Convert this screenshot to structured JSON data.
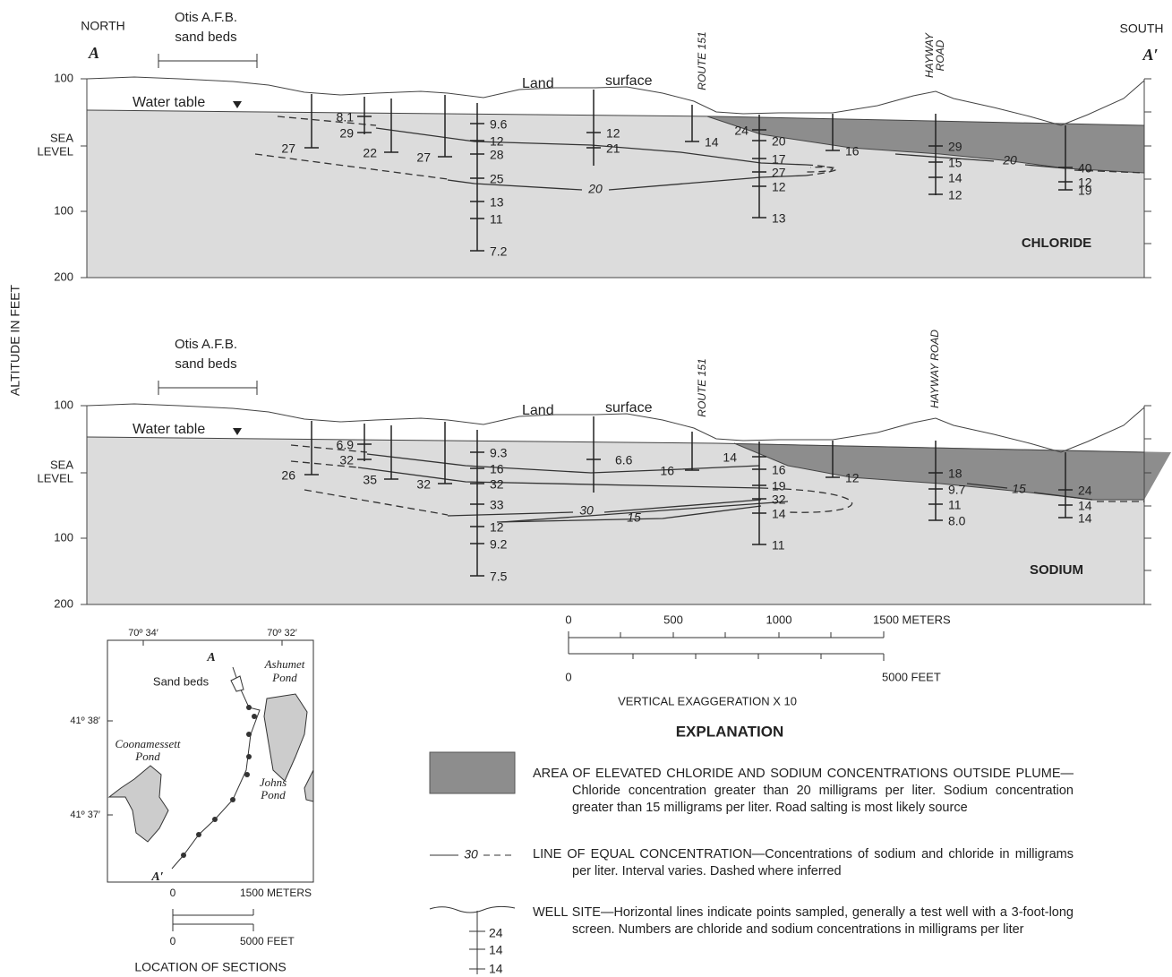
{
  "y_axis_title": "ALTITUDE IN FEET",
  "chloride_section": {
    "north": "NORTH",
    "south": "SOUTH",
    "a": "A",
    "a_prime": "A′",
    "sand_beds": [
      "Otis A.F.B.",
      "sand beds"
    ],
    "y_labels": [
      "100",
      "SEA",
      "LEVEL",
      "100",
      "200"
    ],
    "water_table": "Water table",
    "land": "Land",
    "surface": "surface",
    "route": "ROUTE 151",
    "hayway": [
      "HAYWAY",
      "ROAD"
    ],
    "name": "CHLORIDE",
    "wells": [
      [
        27
      ],
      [
        8.1,
        29
      ],
      [
        22
      ],
      [
        27
      ],
      [
        9.6,
        12,
        28,
        25,
        13,
        11,
        7.2
      ],
      [
        12,
        21
      ],
      [
        14
      ],
      [
        24,
        20,
        17,
        27,
        12,
        13
      ],
      [
        16
      ],
      [
        29,
        15,
        14,
        12
      ],
      [
        40,
        12,
        19
      ]
    ],
    "contour_labels": [
      20,
      20
    ]
  },
  "sodium_section": {
    "sand_beds": [
      "Otis A.F.B.",
      "sand beds"
    ],
    "y_labels": [
      "100",
      "SEA",
      "LEVEL",
      "100",
      "200"
    ],
    "water_table": "Water table",
    "land": "Land",
    "surface": "surface",
    "route": "ROUTE 151",
    "hayway": [
      "HAYWAY ROAD"
    ],
    "name": "SODIUM",
    "wells": [
      [
        26
      ],
      [
        6.9,
        32
      ],
      [
        35
      ],
      [
        32
      ],
      [
        9.3,
        16,
        32,
        33,
        12,
        9.2,
        7.5
      ],
      [
        6.6
      ],
      [
        16
      ],
      [
        14,
        16,
        19,
        32,
        14,
        11
      ],
      [
        12
      ],
      [
        18,
        9.7,
        11,
        "8.0"
      ],
      [
        24,
        14,
        14
      ]
    ],
    "contour_labels": [
      30,
      15,
      15
    ]
  },
  "scale": {
    "meters": [
      "0",
      "500",
      "1000",
      "1500 METERS"
    ],
    "feet": [
      "0",
      "5000 FEET"
    ],
    "exaggeration": "VERTICAL EXAGGERATION X 10"
  },
  "explanation": {
    "title": "EXPLANATION",
    "entries": [
      "AREA OF ELEVATED CHLORIDE AND SODIUM CONCENTRATIONS OUTSIDE PLUME—Chloride concentration greater than 20 milligrams per liter. Sodium concentration greater than 15 milligrams per liter. Road salting is most likely source",
      "LINE OF EQUAL CONCENTRATION—Concentrations of sodium and chloride in milligrams per liter. Interval varies. Dashed where inferred",
      "WELL SITE—Horizontal lines indicate points sampled, generally a test well with a 3-foot-long screen. Numbers are chloride and sodium concentrations in milligrams per liter"
    ],
    "contour_sample": "30",
    "well_sample": [
      "24",
      "14",
      "14"
    ]
  },
  "map": {
    "lon": [
      "70º 34′",
      "70º 32′"
    ],
    "lat": [
      "41º 38′",
      "41º 37′"
    ],
    "a": "A",
    "a_prime": "A′",
    "sand_beds": "Sand beds",
    "ashumet": [
      "Ashumet",
      "Pond"
    ],
    "coonamessett": [
      "Coonamessett",
      "Pond"
    ],
    "johns": [
      "Johns",
      "Pond"
    ],
    "scale_meters": [
      "0",
      "1500 METERS"
    ],
    "scale_feet": [
      "0",
      "5000 FEET"
    ],
    "title": "LOCATION OF SECTIONS"
  }
}
